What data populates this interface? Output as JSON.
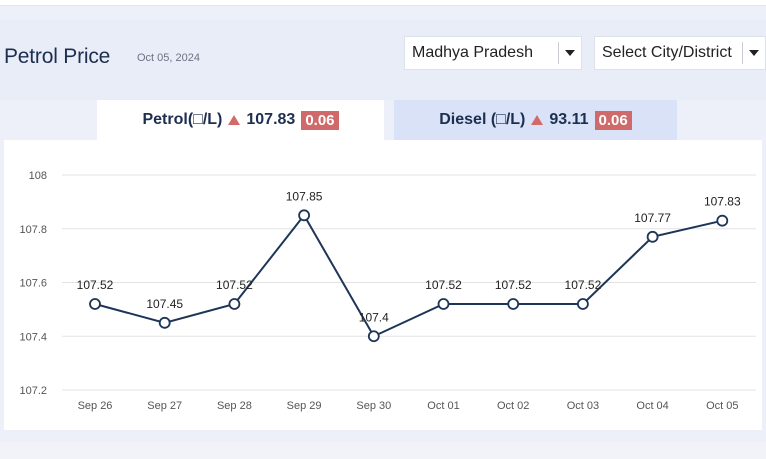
{
  "header": {
    "title": "Petrol Price",
    "date": "Oct 05, 2024",
    "state_select": "Madhya Pradesh",
    "city_select": "Select City/District"
  },
  "tabs": {
    "petrol": {
      "label": "Petrol(□/L)",
      "price": "107.83",
      "change": "0.06"
    },
    "diesel": {
      "label": "Diesel (□/L)",
      "price": "93.11",
      "change": "0.06"
    }
  },
  "colors": {
    "line": "#1d3557",
    "up_arrow": "#d36a6a",
    "badge": "#d06a6a",
    "active_tab": "#ffffff",
    "inactive_tab": "#d9e2f6"
  },
  "chart_data": {
    "type": "line",
    "categories": [
      "Sep 26",
      "Sep 27",
      "Sep 28",
      "Sep 29",
      "Sep 30",
      "Oct 01",
      "Oct 02",
      "Oct 03",
      "Oct 04",
      "Oct 05"
    ],
    "values": [
      107.52,
      107.45,
      107.52,
      107.85,
      107.4,
      107.52,
      107.52,
      107.52,
      107.77,
      107.83
    ],
    "data_labels": [
      "107.52",
      "107.45",
      "107.52",
      "107.85",
      "107.4",
      "107.52",
      "107.52",
      "107.52",
      "107.77",
      "107.83"
    ],
    "y_ticks": [
      "107.2",
      "107.4",
      "107.6",
      "107.8",
      "108"
    ],
    "ylim": [
      107.2,
      108
    ],
    "grid": true
  }
}
